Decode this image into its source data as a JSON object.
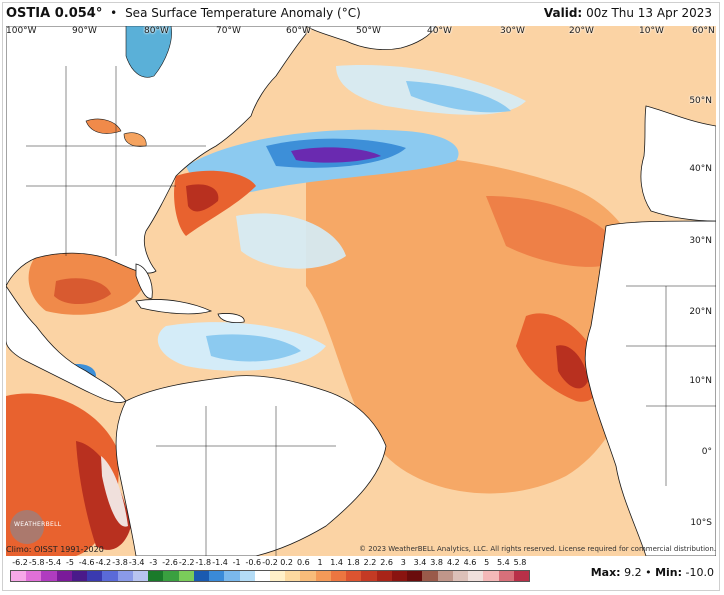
{
  "header": {
    "product": "OSTIA 0.054°",
    "bullet": "•",
    "title": "Sea Surface Temperature Anomaly (°C)",
    "valid_label": "Valid:",
    "valid_time": "00z Thu 13 Apr 2023"
  },
  "map": {
    "lon_labels": [
      "100°W",
      "90°W",
      "80°W",
      "70°W",
      "60°W",
      "50°W",
      "40°W",
      "30°W",
      "20°W",
      "10°W",
      "60°N"
    ],
    "lat_labels": [
      "50°N",
      "40°N",
      "30°N",
      "20°N",
      "10°N",
      "0°",
      "10°S"
    ],
    "palette": {
      "land": "#ffffff",
      "coast": "#1a1a1a",
      "warm_light": "#fbd3a4",
      "warm_mid": "#f5a35f",
      "warm_strong": "#e8622f",
      "warm_extreme": "#b8301f",
      "cool_light": "#d4ecf8",
      "cool_mid": "#8ccaf0",
      "cool_strong": "#3d8fd8",
      "cold_extreme": "#6a2ab0"
    }
  },
  "footer": {
    "climo": "Climo: OISST 1991-2020",
    "copyright": "© 2023 WeatherBELL Analytics, LLC. All rights reserved. License required for commercial distribution.",
    "watermark": "WEATHERBELL",
    "max_label": "Max:",
    "max_value": "9.2",
    "stats_sep": "•",
    "min_label": "Min:",
    "min_value": "-10.0"
  },
  "colorbar": {
    "ticks": [
      "-6.2",
      "-5.8",
      "-5.4",
      "-5",
      "-4.6",
      "-4.2",
      "-3.8",
      "-3.4",
      "-3",
      "-2.6",
      "-2.2",
      "-1.8",
      "-1.4",
      "-1",
      "-0.6",
      "-0.2",
      "0.2",
      "0.6",
      "1",
      "1.4",
      "1.8",
      "2.2",
      "2.6",
      "3",
      "3.4",
      "3.8",
      "4.2",
      "4.6",
      "5",
      "5.4",
      "5.8"
    ],
    "colors": [
      "#f7a8e8",
      "#e070d8",
      "#b03cc0",
      "#7a1a9a",
      "#4a1a8a",
      "#3a3ab0",
      "#5a6ad8",
      "#8a9ae8",
      "#b8c4f0",
      "#1a7a2a",
      "#3aa040",
      "#7acc5a",
      "#1a5ab0",
      "#3a8ad8",
      "#7ab8ec",
      "#b4dcf6",
      "#ffffff",
      "#fff0c8",
      "#fcd9a0",
      "#f8bc7a",
      "#f49a58",
      "#ec7640",
      "#dc5430",
      "#c43a24",
      "#a82418",
      "#8a1410",
      "#6a0c0c",
      "#9a5a4a",
      "#c0968a",
      "#dcc0b8",
      "#f0e0dc",
      "#f4b8b8",
      "#d8707a",
      "#b83048"
    ]
  }
}
